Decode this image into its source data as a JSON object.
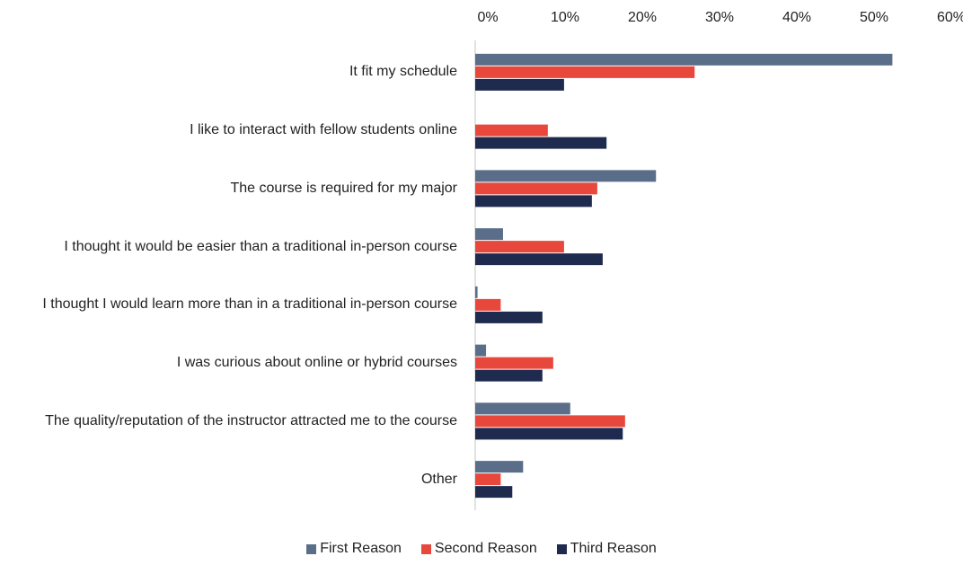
{
  "chart_data": {
    "type": "bar",
    "orientation": "horizontal",
    "categories": [
      "It fit my schedule",
      "I like to interact with fellow students online",
      "The course is required for my major",
      "I thought it would be easier than a traditional in-person course",
      "I thought I would learn more than in a traditional in-person course",
      "I was curious about online or hybrid courses",
      "The quality/reputation of the instructor attracted me to the course",
      "Other"
    ],
    "series": [
      {
        "name": "First Reason",
        "color": "#5a6e8a",
        "values": [
          54.0,
          0,
          23.4,
          3.6,
          0.3,
          1.4,
          12.3,
          6.2
        ]
      },
      {
        "name": "Second Reason",
        "color": "#e8483c",
        "values": [
          28.4,
          9.4,
          15.8,
          11.5,
          3.3,
          10.1,
          19.4,
          3.3
        ]
      },
      {
        "name": "Third Reason",
        "color": "#1f2a4f",
        "values": [
          11.5,
          17.0,
          15.1,
          16.5,
          8.7,
          8.7,
          19.1,
          4.8
        ]
      }
    ],
    "xlim": [
      0,
      60
    ],
    "xticks": [
      {
        "value": 0,
        "label": "0%"
      },
      {
        "value": 10,
        "label": "10%"
      },
      {
        "value": 20,
        "label": "20%"
      },
      {
        "value": 30,
        "label": "30%"
      },
      {
        "value": 40,
        "label": "40%"
      },
      {
        "value": 50,
        "label": "50%"
      },
      {
        "value": 60,
        "label": "60%"
      }
    ],
    "legend": "bottom"
  }
}
